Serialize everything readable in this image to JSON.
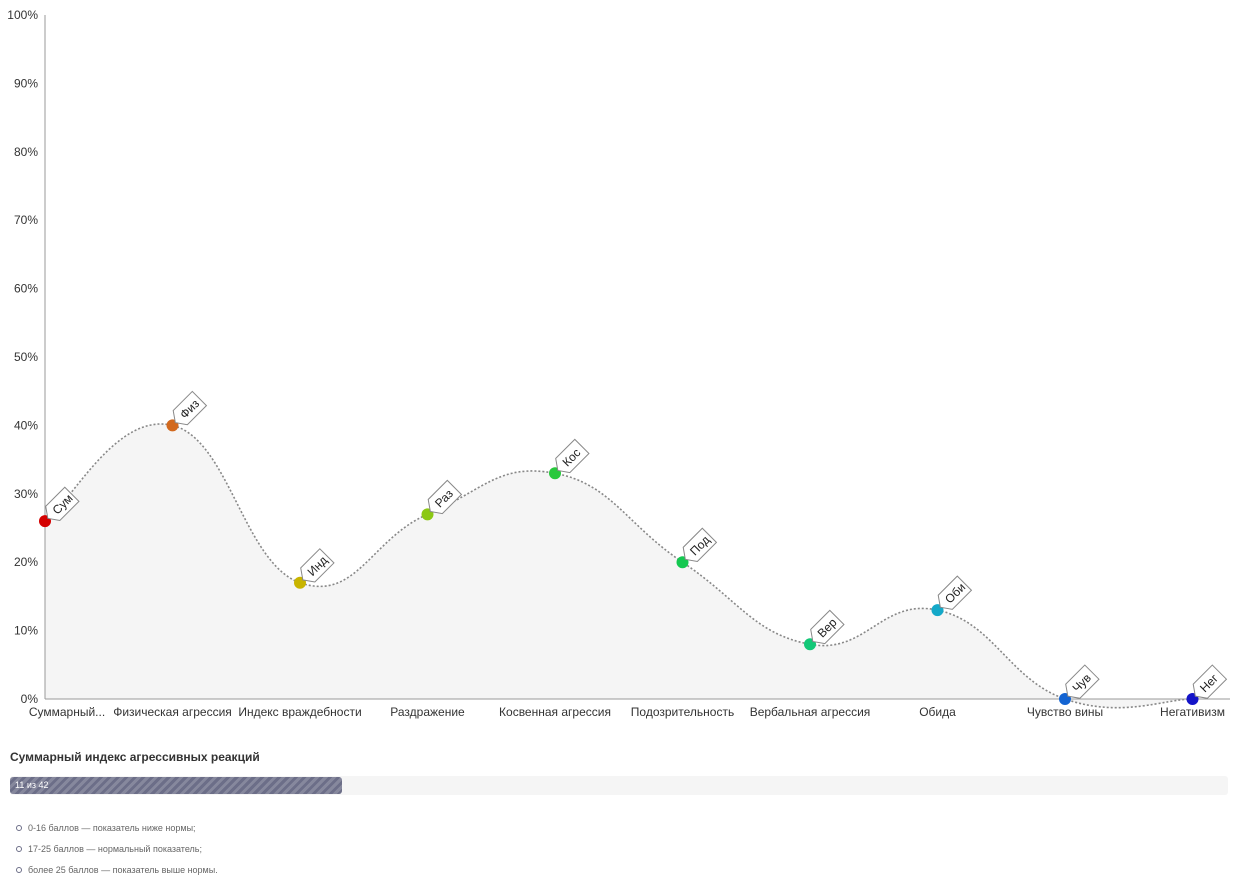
{
  "chart_data": {
    "type": "area",
    "categories": [
      "Суммарный...",
      "Физическая агрессия",
      "Индекс враждебности",
      "Раздражение",
      "Косвенная агрессия",
      "Подозрительность",
      "Вербальная агрессия",
      "Обида",
      "Чувство вины",
      "Негативизм"
    ],
    "point_labels": [
      "Сум",
      "Физ",
      "Инд",
      "Раз",
      "Кос",
      "Под",
      "Вер",
      "Оби",
      "Чув",
      "Нег"
    ],
    "values": [
      26,
      40,
      17,
      27,
      33,
      20,
      8,
      13,
      0,
      0
    ],
    "point_colors": [
      "#d40000",
      "#d2691e",
      "#c8b400",
      "#8cc814",
      "#28c83c",
      "#14c850",
      "#14c878",
      "#14a8c8",
      "#1464d2",
      "#1414c8"
    ],
    "ylim": [
      0,
      100
    ],
    "yticks": [
      "0%",
      "10%",
      "20%",
      "30%",
      "40%",
      "50%",
      "60%",
      "70%",
      "80%",
      "90%",
      "100%"
    ],
    "grid": false,
    "line_color": "#888888",
    "fill_color": "#f5f5f5"
  },
  "summary": {
    "title": "Суммарный индекс агрессивных реакций",
    "score_text": "11 из 42",
    "score": 11,
    "max": 42,
    "fill_color": "#6c6e88"
  },
  "norms": [
    "0-16 баллов — показатель ниже нормы;",
    "17-25 баллов — нормальный показатель;",
    "более 25 баллов — показатель выше нормы."
  ]
}
